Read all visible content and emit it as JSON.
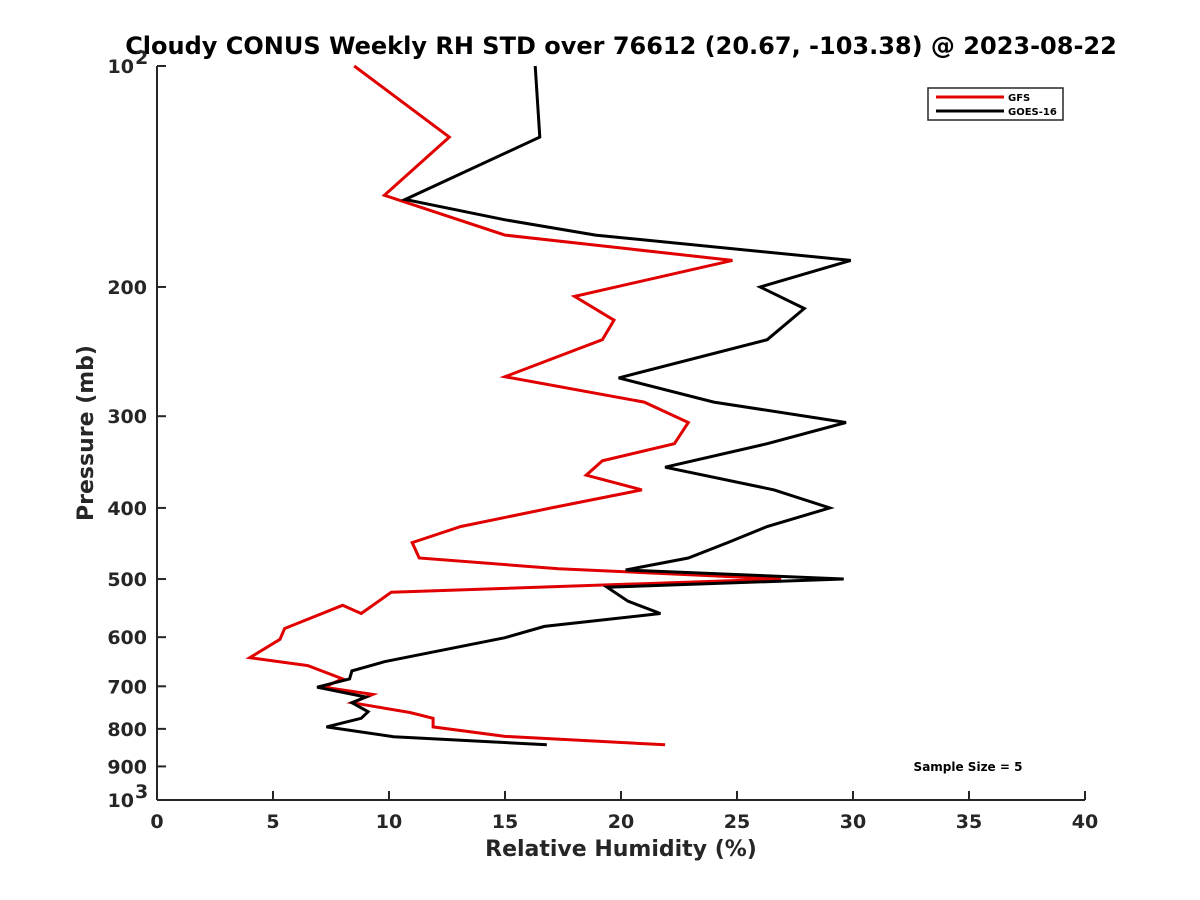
{
  "chart_data": {
    "type": "line",
    "title": "Cloudy CONUS Weekly RH STD over 76612 (20.67, -103.38) @ 2023-08-22",
    "xlabel": "Relative Humidity (%)",
    "ylabel": "Pressure (mb)",
    "xlim": [
      0,
      40
    ],
    "ylim": [
      100,
      1000
    ],
    "yscale": "log",
    "y_reversed": true,
    "x_ticks": [
      0,
      5,
      10,
      15,
      20,
      25,
      30,
      35,
      40
    ],
    "x_tick_labels": [
      "0",
      "5",
      "10",
      "15",
      "20",
      "25",
      "30",
      "35",
      "40"
    ],
    "y_ticks": [
      100,
      200,
      300,
      400,
      500,
      600,
      700,
      800,
      900,
      1000
    ],
    "y_tick_labels": [
      {
        "base": "10",
        "exp": "2"
      },
      {
        "text": "200"
      },
      {
        "text": "300"
      },
      {
        "text": "400"
      },
      {
        "text": "500"
      },
      {
        "text": "600"
      },
      {
        "text": "700"
      },
      {
        "text": "800"
      },
      {
        "text": "900"
      },
      {
        "base": "10",
        "exp": "3"
      }
    ],
    "legend": {
      "position": "top-right"
    },
    "annotation": "Sample Size = 5",
    "series": [
      {
        "name": "GFS",
        "color": "#e00000",
        "points": [
          [
            8.5,
            100
          ],
          [
            12.6,
            125
          ],
          [
            9.8,
            150
          ],
          [
            15.0,
            170
          ],
          [
            24.8,
            184
          ],
          [
            18.0,
            206
          ],
          [
            19.7,
            222
          ],
          [
            19.2,
            236
          ],
          [
            15.0,
            265
          ],
          [
            21.0,
            287
          ],
          [
            22.9,
            306
          ],
          [
            22.3,
            327
          ],
          [
            19.2,
            345
          ],
          [
            18.5,
            361
          ],
          [
            20.9,
            378
          ],
          [
            17.0,
            400
          ],
          [
            13.1,
            424
          ],
          [
            11.0,
            446
          ],
          [
            11.3,
            468
          ],
          [
            17.3,
            484
          ],
          [
            26.9,
            500
          ],
          [
            10.1,
            521
          ],
          [
            8.8,
            557
          ],
          [
            8.0,
            543
          ],
          [
            5.5,
            584
          ],
          [
            5.3,
            604
          ],
          [
            4.0,
            640
          ],
          [
            6.5,
            656
          ],
          [
            8.0,
            684
          ],
          [
            7.2,
            702
          ],
          [
            9.3,
            718
          ],
          [
            8.4,
            737
          ],
          [
            10.9,
            760
          ],
          [
            11.9,
            774
          ],
          [
            11.9,
            795
          ],
          [
            15.0,
            819
          ],
          [
            21.9,
            841
          ]
        ]
      },
      {
        "name": "GOES-16",
        "color": "#000000",
        "points": [
          [
            16.3,
            100
          ],
          [
            16.5,
            125
          ],
          [
            10.7,
            152
          ],
          [
            15.0,
            162
          ],
          [
            18.9,
            170
          ],
          [
            29.9,
            184
          ],
          [
            26.0,
            200
          ],
          [
            27.9,
            214
          ],
          [
            26.3,
            236
          ],
          [
            19.9,
            266
          ],
          [
            24.0,
            287
          ],
          [
            29.7,
            306
          ],
          [
            26.3,
            327
          ],
          [
            21.9,
            352
          ],
          [
            26.6,
            378
          ],
          [
            29.0,
            400
          ],
          [
            26.3,
            424
          ],
          [
            24.6,
            446
          ],
          [
            22.9,
            468
          ],
          [
            20.2,
            486
          ],
          [
            29.6,
            500
          ],
          [
            19.4,
            513
          ],
          [
            20.3,
            536
          ],
          [
            21.7,
            557
          ],
          [
            16.7,
            580
          ],
          [
            15.0,
            601
          ],
          [
            9.8,
            648
          ],
          [
            8.4,
            667
          ],
          [
            8.3,
            684
          ],
          [
            6.9,
            702
          ],
          [
            9.0,
            724
          ],
          [
            8.4,
            737
          ],
          [
            9.1,
            758
          ],
          [
            8.8,
            774
          ],
          [
            7.3,
            795
          ],
          [
            10.2,
            820
          ],
          [
            16.8,
            841
          ]
        ]
      }
    ]
  }
}
